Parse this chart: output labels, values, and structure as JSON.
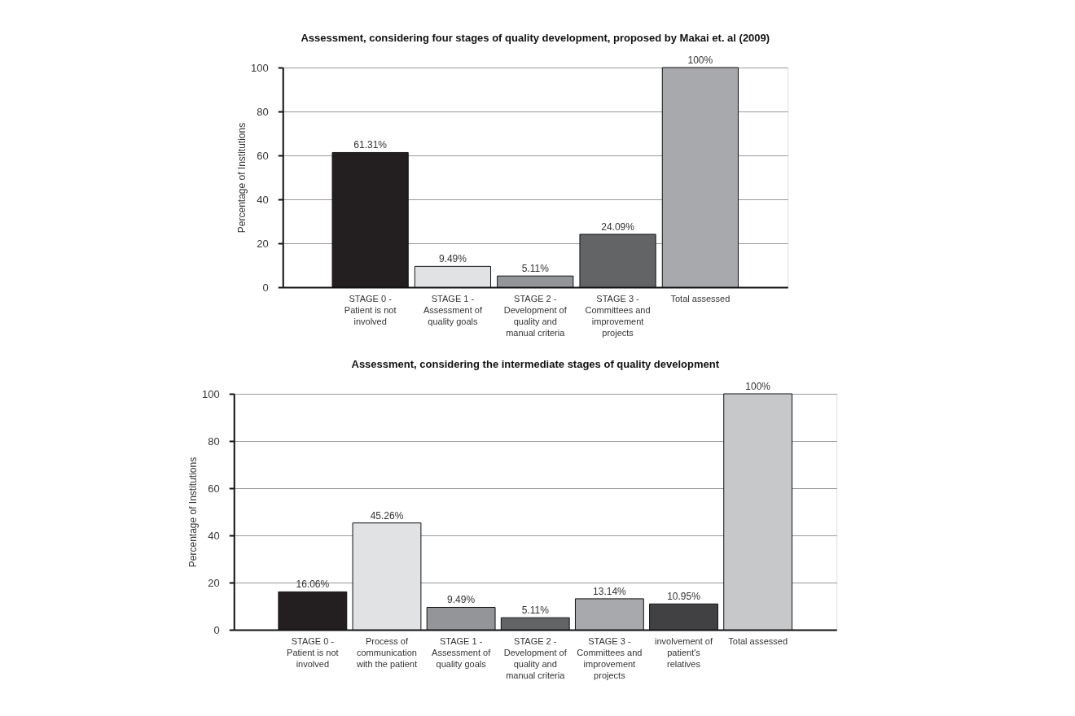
{
  "chart_data": [
    {
      "type": "bar",
      "title": "Assessment, considering four stages of quality development, proposed by Makai et. al (2009)",
      "ylabel": "Percentage of Institutions",
      "categories": [
        "STAGE 0 - Patient is not involved",
        "STAGE 1 - Assessment of quality goals",
        "STAGE 2 - Development of quality and manual criteria",
        "STAGE 3 - Committees and improvement projects",
        "Total assessed"
      ],
      "values": [
        61.31,
        9.49,
        5.11,
        24.09,
        100
      ],
      "colors": [
        "#231f20",
        "#e1e2e3",
        "#939598",
        "#636466",
        "#a7a9ac"
      ],
      "value_labels": [
        "61.31%",
        "9.49%",
        "5.11%",
        "24.09%",
        "100%"
      ],
      "ylim": [
        0,
        100
      ],
      "yticks": [
        0,
        20,
        40,
        60,
        80,
        100
      ],
      "grid": "y"
    },
    {
      "type": "bar",
      "title": "Assessment, considering the intermediate stages of quality development",
      "ylabel": "Percentage of Institutions",
      "categories": [
        "STAGE 0 - Patient is not involved",
        "Process of communication with the patient",
        "STAGE 1 - Assessment of quality goals",
        "STAGE 2 - Development of quality and manual criteria",
        "STAGE 3 - Committees and improvement projects",
        "involvement of patient's relatives",
        "Total assessed"
      ],
      "values": [
        16.06,
        45.26,
        9.49,
        5.11,
        13.14,
        10.95,
        100
      ],
      "colors": [
        "#231f20",
        "#e1e2e3",
        "#939598",
        "#636466",
        "#a7a9ac",
        "#414042",
        "#c7c8ca"
      ],
      "value_labels": [
        "16.06%",
        "45.26%",
        "9.49%",
        "5.11%",
        "13.14%",
        "10.95%",
        "100%"
      ],
      "ylim": [
        0,
        100
      ],
      "yticks": [
        0,
        20,
        40,
        60,
        80,
        100
      ],
      "grid": "y"
    }
  ]
}
